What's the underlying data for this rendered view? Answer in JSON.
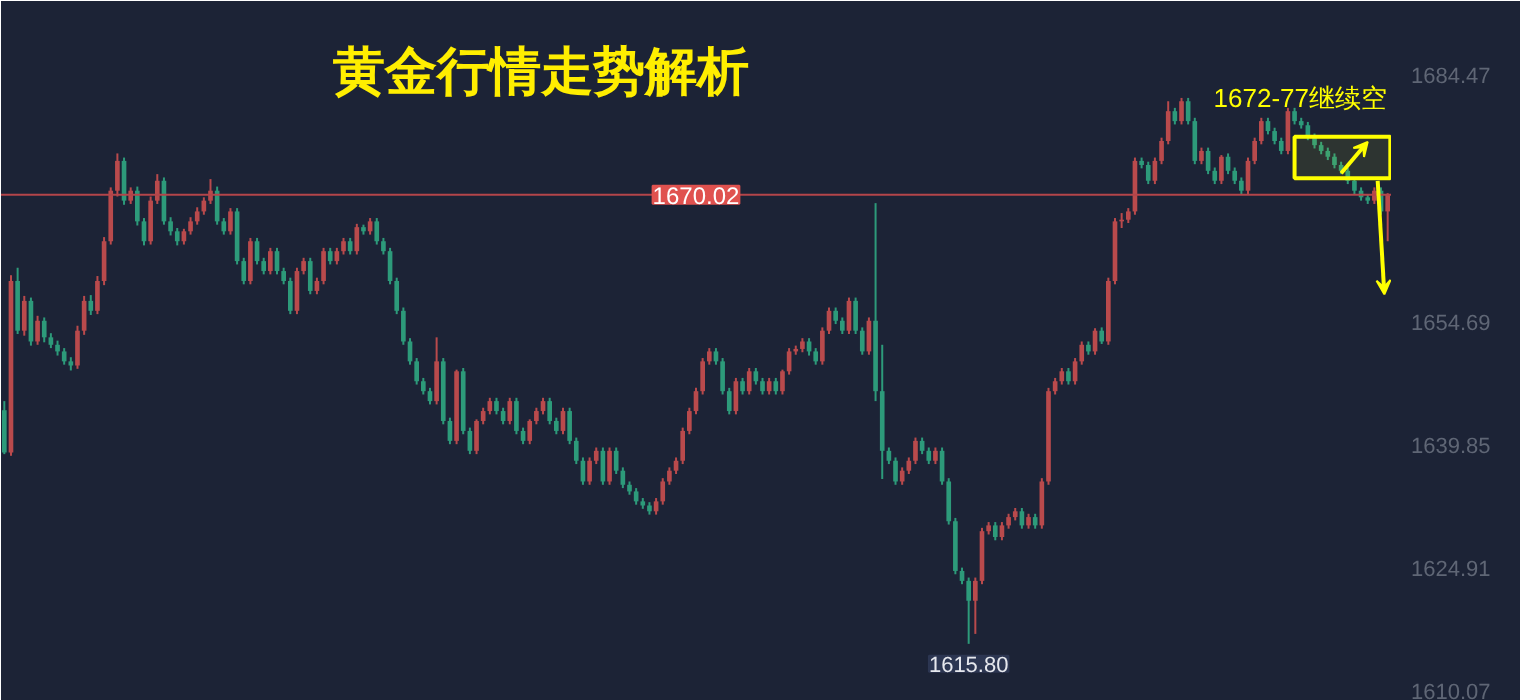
{
  "chart_data": {
    "type": "candlestick",
    "title": "黄金行情走势解析",
    "categories": [
      null,
      null,
      null,
      null,
      null,
      null,
      null,
      null,
      null,
      null,
      null,
      null,
      null,
      null,
      null,
      null,
      null,
      null,
      null,
      null,
      null,
      null,
      null,
      null,
      null,
      null,
      null,
      null,
      null,
      null,
      null,
      null,
      null,
      null,
      null,
      null,
      null,
      null,
      null,
      null,
      null,
      null,
      null,
      null,
      null,
      null,
      null,
      null,
      null,
      null,
      null,
      null,
      null,
      null,
      null,
      null,
      null,
      null,
      null,
      null,
      null,
      null,
      null,
      null,
      null,
      null,
      null,
      null,
      null,
      null,
      null,
      null,
      null,
      null,
      null,
      null,
      null,
      null,
      null,
      null,
      null,
      null,
      null,
      null,
      null,
      null,
      null,
      null,
      null,
      null,
      null,
      null,
      null,
      null,
      null,
      null,
      null,
      null,
      null,
      null,
      null,
      null,
      null,
      null,
      null,
      null,
      null,
      null,
      null,
      null,
      null,
      null,
      null,
      null,
      null,
      null,
      null,
      null,
      null,
      null,
      null,
      null,
      null,
      null,
      null,
      null,
      null,
      null,
      null,
      null,
      null,
      null,
      null,
      null,
      null,
      null,
      null,
      null,
      null,
      null,
      null,
      null,
      null,
      null,
      null,
      null,
      null,
      null,
      null,
      null,
      null,
      null,
      null,
      null,
      null,
      null,
      null,
      null,
      null,
      null,
      null,
      null,
      null,
      null,
      null,
      null,
      null,
      null,
      null,
      null,
      null,
      null,
      null,
      null,
      null,
      null,
      null,
      null,
      null,
      null,
      null,
      null,
      null,
      null,
      null,
      null,
      null,
      null,
      null,
      null,
      null,
      null,
      null,
      null,
      null,
      null,
      null,
      null,
      null,
      null,
      null,
      null,
      null,
      null,
      null,
      null,
      null,
      null,
      null
    ],
    "ohlc": [
      [
        1644.0,
        1645.1,
        1638.7,
        1638.9
      ],
      [
        1638.9,
        1660.3,
        1638.5,
        1659.6
      ],
      [
        1659.6,
        1661.2,
        1653.2,
        1653.6
      ],
      [
        1653.6,
        1657.8,
        1653.0,
        1657.2
      ],
      [
        1657.2,
        1657.6,
        1651.8,
        1652.3
      ],
      [
        1652.3,
        1655.4,
        1651.9,
        1654.8
      ],
      [
        1654.8,
        1655.2,
        1652.2,
        1652.8
      ],
      [
        1652.8,
        1653.3,
        1651.5,
        1651.9
      ],
      [
        1651.9,
        1652.4,
        1650.6,
        1651.1
      ],
      [
        1651.1,
        1651.5,
        1649.5,
        1649.9
      ],
      [
        1649.9,
        1650.4,
        1648.8,
        1649.4
      ],
      [
        1649.4,
        1654.2,
        1649.0,
        1653.6
      ],
      [
        1653.6,
        1657.8,
        1653.1,
        1657.2
      ],
      [
        1657.2,
        1657.9,
        1655.5,
        1656.0
      ],
      [
        1656.0,
        1660.2,
        1655.6,
        1659.6
      ],
      [
        1659.6,
        1664.9,
        1659.1,
        1664.4
      ],
      [
        1664.4,
        1670.9,
        1664.0,
        1670.5
      ],
      [
        1670.5,
        1675.0,
        1669.8,
        1674.1
      ],
      [
        1674.1,
        1674.5,
        1668.8,
        1669.3
      ],
      [
        1669.3,
        1670.9,
        1668.9,
        1670.5
      ],
      [
        1670.5,
        1671.0,
        1666.3,
        1666.8
      ],
      [
        1666.8,
        1667.2,
        1663.9,
        1664.4
      ],
      [
        1664.4,
        1669.8,
        1664.0,
        1669.3
      ],
      [
        1669.3,
        1672.5,
        1668.9,
        1671.7
      ],
      [
        1671.7,
        1672.1,
        1666.4,
        1666.8
      ],
      [
        1666.8,
        1667.3,
        1665.1,
        1665.6
      ],
      [
        1665.6,
        1666.0,
        1663.9,
        1664.4
      ],
      [
        1664.4,
        1665.9,
        1664.0,
        1665.6
      ],
      [
        1665.6,
        1667.3,
        1665.2,
        1666.8
      ],
      [
        1666.8,
        1668.5,
        1666.4,
        1668.0
      ],
      [
        1668.0,
        1669.7,
        1667.6,
        1669.3
      ],
      [
        1669.3,
        1671.9,
        1668.9,
        1670.5
      ],
      [
        1670.5,
        1671.0,
        1666.4,
        1666.8
      ],
      [
        1666.8,
        1667.2,
        1665.2,
        1665.6
      ],
      [
        1665.6,
        1668.4,
        1665.2,
        1668.0
      ],
      [
        1668.0,
        1668.4,
        1661.6,
        1662.0
      ],
      [
        1662.0,
        1662.4,
        1659.2,
        1659.6
      ],
      [
        1659.6,
        1664.8,
        1659.2,
        1664.4
      ],
      [
        1664.4,
        1664.8,
        1661.6,
        1662.0
      ],
      [
        1662.0,
        1662.4,
        1660.4,
        1660.8
      ],
      [
        1660.8,
        1663.6,
        1660.4,
        1663.2
      ],
      [
        1663.2,
        1663.6,
        1660.4,
        1660.8
      ],
      [
        1660.8,
        1661.2,
        1659.2,
        1659.6
      ],
      [
        1659.6,
        1660.0,
        1655.6,
        1656.0
      ],
      [
        1656.0,
        1661.2,
        1655.6,
        1660.8
      ],
      [
        1660.8,
        1662.4,
        1660.4,
        1662.0
      ],
      [
        1662.0,
        1662.4,
        1658.0,
        1658.4
      ],
      [
        1658.4,
        1660.0,
        1658.0,
        1659.6
      ],
      [
        1659.6,
        1663.6,
        1659.2,
        1663.2
      ],
      [
        1663.2,
        1663.6,
        1661.6,
        1662.0
      ],
      [
        1662.0,
        1663.6,
        1661.6,
        1663.2
      ],
      [
        1663.2,
        1664.8,
        1662.8,
        1664.4
      ],
      [
        1664.4,
        1664.8,
        1662.8,
        1663.2
      ],
      [
        1663.2,
        1666.5,
        1662.8,
        1666.1
      ],
      [
        1666.1,
        1666.4,
        1665.2,
        1665.6
      ],
      [
        1665.6,
        1667.2,
        1665.2,
        1666.8
      ],
      [
        1666.8,
        1667.2,
        1664.0,
        1664.4
      ],
      [
        1664.4,
        1664.8,
        1662.8,
        1663.2
      ],
      [
        1663.2,
        1663.6,
        1659.2,
        1659.6
      ],
      [
        1659.6,
        1660.0,
        1655.6,
        1656.0
      ],
      [
        1656.0,
        1656.4,
        1651.9,
        1652.3
      ],
      [
        1652.3,
        1652.7,
        1649.5,
        1649.9
      ],
      [
        1649.9,
        1650.3,
        1647.1,
        1647.5
      ],
      [
        1647.5,
        1647.9,
        1645.9,
        1646.3
      ],
      [
        1646.3,
        1646.7,
        1644.7,
        1645.1
      ],
      [
        1645.1,
        1652.8,
        1644.7,
        1649.9
      ],
      [
        1649.9,
        1650.3,
        1642.3,
        1642.7
      ],
      [
        1642.7,
        1643.1,
        1639.9,
        1640.3
      ],
      [
        1640.3,
        1648.9,
        1639.9,
        1648.7
      ],
      [
        1648.7,
        1649.1,
        1641.1,
        1641.5
      ],
      [
        1641.5,
        1641.9,
        1638.7,
        1639.1
      ],
      [
        1639.1,
        1642.9,
        1638.7,
        1642.7
      ],
      [
        1642.7,
        1644.3,
        1642.3,
        1643.9
      ],
      [
        1643.9,
        1645.5,
        1643.5,
        1645.1
      ],
      [
        1645.1,
        1645.5,
        1643.5,
        1643.9
      ],
      [
        1643.9,
        1644.3,
        1642.3,
        1642.7
      ],
      [
        1642.7,
        1645.5,
        1642.3,
        1645.1
      ],
      [
        1645.1,
        1645.5,
        1641.1,
        1641.5
      ],
      [
        1641.5,
        1641.9,
        1639.9,
        1640.3
      ],
      [
        1640.3,
        1642.9,
        1639.9,
        1642.7
      ],
      [
        1642.7,
        1644.3,
        1642.3,
        1643.9
      ],
      [
        1643.9,
        1645.5,
        1643.5,
        1645.1
      ],
      [
        1645.1,
        1645.5,
        1642.3,
        1642.7
      ],
      [
        1642.7,
        1643.1,
        1641.1,
        1641.5
      ],
      [
        1641.5,
        1644.3,
        1641.1,
        1643.9
      ],
      [
        1643.9,
        1644.3,
        1639.9,
        1640.3
      ],
      [
        1640.3,
        1640.7,
        1637.5,
        1637.9
      ],
      [
        1637.9,
        1638.3,
        1635.0,
        1635.4
      ],
      [
        1635.4,
        1638.3,
        1635.0,
        1637.9
      ],
      [
        1637.9,
        1639.5,
        1637.5,
        1639.1
      ],
      [
        1639.1,
        1639.5,
        1635.0,
        1635.4
      ],
      [
        1635.4,
        1639.5,
        1635.0,
        1639.1
      ],
      [
        1639.1,
        1639.5,
        1636.3,
        1636.7
      ],
      [
        1636.7,
        1637.1,
        1634.6,
        1635.0
      ],
      [
        1635.0,
        1635.4,
        1633.8,
        1634.2
      ],
      [
        1634.2,
        1634.6,
        1632.6,
        1633.0
      ],
      [
        1633.0,
        1633.4,
        1632.1,
        1632.5
      ],
      [
        1632.5,
        1632.9,
        1631.4,
        1631.8
      ],
      [
        1631.8,
        1633.4,
        1631.4,
        1633.0
      ],
      [
        1633.0,
        1635.8,
        1632.6,
        1635.4
      ],
      [
        1635.4,
        1637.1,
        1635.0,
        1636.7
      ],
      [
        1636.7,
        1638.3,
        1636.3,
        1637.9
      ],
      [
        1637.9,
        1641.9,
        1637.5,
        1641.5
      ],
      [
        1641.5,
        1644.3,
        1641.1,
        1643.9
      ],
      [
        1643.9,
        1646.7,
        1643.5,
        1646.3
      ],
      [
        1646.3,
        1650.3,
        1645.9,
        1649.9
      ],
      [
        1649.9,
        1651.5,
        1649.5,
        1651.1
      ],
      [
        1651.1,
        1651.5,
        1649.5,
        1649.9
      ],
      [
        1649.9,
        1650.3,
        1645.9,
        1646.3
      ],
      [
        1646.3,
        1646.7,
        1643.5,
        1643.9
      ],
      [
        1643.9,
        1647.9,
        1643.5,
        1647.5
      ],
      [
        1647.5,
        1647.9,
        1645.9,
        1646.3
      ],
      [
        1646.3,
        1649.1,
        1645.9,
        1648.7
      ],
      [
        1648.7,
        1649.1,
        1647.1,
        1647.5
      ],
      [
        1647.5,
        1647.9,
        1645.9,
        1646.3
      ],
      [
        1646.3,
        1647.9,
        1645.9,
        1647.5
      ],
      [
        1647.5,
        1647.9,
        1645.9,
        1646.3
      ],
      [
        1646.3,
        1648.9,
        1645.9,
        1648.7
      ],
      [
        1648.7,
        1651.5,
        1648.3,
        1651.1
      ],
      [
        1651.1,
        1651.8,
        1650.7,
        1651.4
      ],
      [
        1651.4,
        1652.7,
        1651.0,
        1652.3
      ],
      [
        1652.3,
        1652.7,
        1650.6,
        1651.1
      ],
      [
        1651.1,
        1651.5,
        1649.5,
        1649.9
      ],
      [
        1649.9,
        1654.0,
        1649.5,
        1653.6
      ],
      [
        1653.6,
        1656.4,
        1653.2,
        1656.0
      ],
      [
        1656.0,
        1656.4,
        1654.4,
        1654.8
      ],
      [
        1654.8,
        1655.2,
        1653.2,
        1653.6
      ],
      [
        1653.6,
        1657.6,
        1653.2,
        1657.2
      ],
      [
        1657.2,
        1657.6,
        1653.2,
        1653.6
      ],
      [
        1653.6,
        1654.0,
        1650.7,
        1651.1
      ],
      [
        1651.1,
        1655.2,
        1650.7,
        1654.8
      ],
      [
        1654.8,
        1669.0,
        1645.1,
        1646.3
      ],
      [
        1646.3,
        1651.9,
        1635.7,
        1639.1
      ],
      [
        1639.1,
        1639.5,
        1637.5,
        1637.9
      ],
      [
        1637.9,
        1638.3,
        1635.0,
        1635.4
      ],
      [
        1635.4,
        1637.1,
        1635.0,
        1636.7
      ],
      [
        1636.7,
        1638.3,
        1636.3,
        1637.9
      ],
      [
        1637.9,
        1640.7,
        1637.5,
        1640.3
      ],
      [
        1640.3,
        1640.7,
        1638.7,
        1639.1
      ],
      [
        1639.1,
        1639.5,
        1637.5,
        1637.9
      ],
      [
        1637.9,
        1639.5,
        1637.5,
        1639.1
      ],
      [
        1639.1,
        1639.5,
        1635.0,
        1635.4
      ],
      [
        1635.4,
        1635.8,
        1630.2,
        1630.6
      ],
      [
        1630.6,
        1631.0,
        1624.2,
        1624.6
      ],
      [
        1624.6,
        1625.0,
        1623.0,
        1623.4
      ],
      [
        1623.4,
        1623.8,
        1615.8,
        1621.0
      ],
      [
        1621.0,
        1623.8,
        1617.0,
        1623.4
      ],
      [
        1623.4,
        1629.8,
        1623.0,
        1629.4
      ],
      [
        1629.4,
        1630.5,
        1629.0,
        1630.1
      ],
      [
        1630.1,
        1630.5,
        1628.3,
        1628.7
      ],
      [
        1628.7,
        1630.5,
        1628.3,
        1630.1
      ],
      [
        1630.1,
        1631.5,
        1629.7,
        1631.1
      ],
      [
        1631.1,
        1632.2,
        1630.7,
        1631.8
      ],
      [
        1631.8,
        1632.2,
        1629.7,
        1630.1
      ],
      [
        1630.1,
        1631.5,
        1629.7,
        1631.1
      ],
      [
        1631.1,
        1631.5,
        1629.7,
        1630.1
      ],
      [
        1630.1,
        1635.8,
        1629.7,
        1635.4
      ],
      [
        1635.4,
        1646.7,
        1635.0,
        1646.3
      ],
      [
        1646.3,
        1647.9,
        1645.9,
        1647.5
      ],
      [
        1647.5,
        1649.1,
        1647.1,
        1648.7
      ],
      [
        1648.7,
        1649.1,
        1647.1,
        1647.5
      ],
      [
        1647.5,
        1650.3,
        1647.1,
        1649.9
      ],
      [
        1649.9,
        1652.3,
        1649.5,
        1651.9
      ],
      [
        1651.9,
        1652.3,
        1650.7,
        1651.1
      ],
      [
        1651.1,
        1653.9,
        1650.7,
        1653.6
      ],
      [
        1653.6,
        1654.0,
        1652.0,
        1652.3
      ],
      [
        1652.3,
        1660.0,
        1651.9,
        1659.6
      ],
      [
        1659.6,
        1667.2,
        1659.2,
        1666.8
      ],
      [
        1666.8,
        1667.8,
        1666.0,
        1667.0
      ],
      [
        1667.0,
        1668.4,
        1666.6,
        1668.0
      ],
      [
        1668.0,
        1674.5,
        1667.6,
        1674.1
      ],
      [
        1674.1,
        1674.5,
        1673.2,
        1673.6
      ],
      [
        1673.6,
        1674.0,
        1671.3,
        1671.7
      ],
      [
        1671.7,
        1674.5,
        1671.3,
        1674.1
      ],
      [
        1674.1,
        1676.9,
        1673.7,
        1676.5
      ],
      [
        1676.5,
        1681.3,
        1676.1,
        1680.1
      ],
      [
        1680.1,
        1680.5,
        1678.5,
        1678.9
      ],
      [
        1678.9,
        1681.7,
        1678.5,
        1681.3
      ],
      [
        1681.3,
        1681.7,
        1678.5,
        1678.9
      ],
      [
        1678.9,
        1679.3,
        1673.7,
        1674.1
      ],
      [
        1674.1,
        1675.7,
        1673.7,
        1675.3
      ],
      [
        1675.3,
        1675.7,
        1672.5,
        1672.9
      ],
      [
        1672.9,
        1673.3,
        1671.3,
        1671.7
      ],
      [
        1671.7,
        1674.8,
        1671.3,
        1674.6
      ],
      [
        1674.6,
        1675.0,
        1672.5,
        1672.9
      ],
      [
        1672.9,
        1673.3,
        1671.3,
        1671.7
      ],
      [
        1671.7,
        1672.1,
        1670.1,
        1670.5
      ],
      [
        1670.5,
        1674.5,
        1670.1,
        1674.1
      ],
      [
        1674.1,
        1676.9,
        1673.7,
        1676.5
      ],
      [
        1676.5,
        1679.3,
        1676.1,
        1678.9
      ],
      [
        1678.9,
        1679.3,
        1677.3,
        1677.7
      ],
      [
        1677.7,
        1678.1,
        1676.1,
        1676.5
      ],
      [
        1676.5,
        1676.9,
        1674.9,
        1675.3
      ],
      [
        1675.3,
        1680.5,
        1674.9,
        1680.1
      ],
      [
        1680.1,
        1680.5,
        1678.5,
        1678.9
      ],
      [
        1678.9,
        1679.3,
        1678.0,
        1678.4
      ],
      [
        1678.4,
        1678.8,
        1676.6,
        1677.0
      ],
      [
        1677.0,
        1677.4,
        1675.6,
        1676.0
      ],
      [
        1676.0,
        1676.4,
        1674.9,
        1675.3
      ],
      [
        1675.3,
        1675.7,
        1674.2,
        1674.6
      ],
      [
        1674.6,
        1675.0,
        1673.2,
        1673.6
      ],
      [
        1673.6,
        1674.0,
        1672.5,
        1672.9
      ],
      [
        1672.9,
        1673.3,
        1671.3,
        1671.7
      ],
      [
        1671.7,
        1672.1,
        1670.1,
        1670.5
      ],
      [
        1670.5,
        1670.9,
        1669.3,
        1669.7
      ],
      [
        1669.7,
        1670.1,
        1668.9,
        1669.3
      ],
      [
        1669.3,
        1670.9,
        1668.9,
        1670.5
      ],
      [
        1670.5,
        1670.9,
        1667.6,
        1668.0
      ],
      [
        1668.0,
        1670.2,
        1664.4,
        1670.02
      ]
    ],
    "ylim": [
      1608.9,
      1693.4
    ],
    "yticks": [
      1610.07,
      1624.91,
      1639.85,
      1654.69,
      1684.47
    ],
    "ref_lines": [
      {
        "axis": "y",
        "value": 1670.02,
        "label": "1670.02",
        "color": "#b3454a"
      }
    ],
    "bands": [
      {
        "axis": "y",
        "from": 1672,
        "to": 1677,
        "label": "1672-77继续空",
        "color": "#ffff00"
      }
    ],
    "annotations": [
      "1615.80"
    ]
  }
}
